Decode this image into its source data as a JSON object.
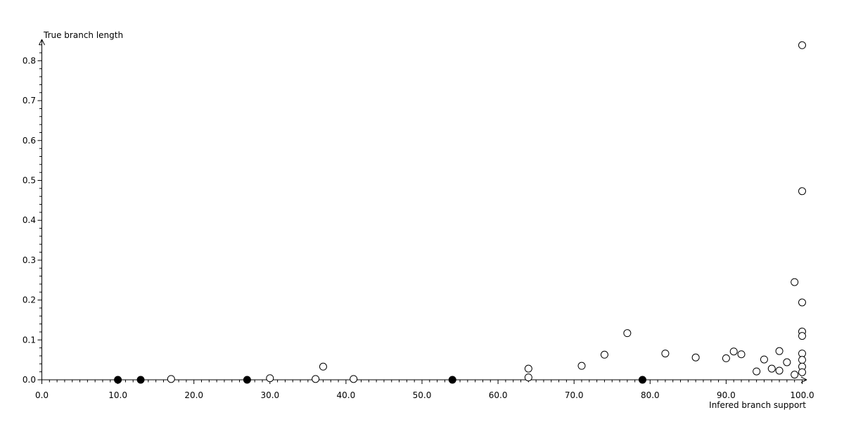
{
  "chart_data": {
    "type": "scatter",
    "title": "",
    "xlabel": "Infered branch support",
    "ylabel": "True branch length",
    "xlim": [
      0,
      100
    ],
    "ylim": [
      0,
      0.84
    ],
    "grid": false,
    "axis_color": "#000000",
    "background_color": "#ffffff",
    "x_ticks": [
      {
        "v": 0,
        "label": "0.0"
      },
      {
        "v": 10,
        "label": "10.0"
      },
      {
        "v": 20,
        "label": "20.0"
      },
      {
        "v": 30,
        "label": "30.0"
      },
      {
        "v": 40,
        "label": "40.0"
      },
      {
        "v": 50,
        "label": "50.0"
      },
      {
        "v": 60,
        "label": "60.0"
      },
      {
        "v": 70,
        "label": "70.0"
      },
      {
        "v": 80,
        "label": "80.0"
      },
      {
        "v": 90,
        "label": "90.0"
      },
      {
        "v": 100,
        "label": "100.0"
      }
    ],
    "x_minor_step": 1,
    "y_ticks": [
      {
        "v": 0.0,
        "label": "0.0"
      },
      {
        "v": 0.1,
        "label": "0.1"
      },
      {
        "v": 0.2,
        "label": "0.2"
      },
      {
        "v": 0.3,
        "label": "0.3"
      },
      {
        "v": 0.4,
        "label": "0.4"
      },
      {
        "v": 0.5,
        "label": "0.5"
      },
      {
        "v": 0.6,
        "label": "0.6"
      },
      {
        "v": 0.7,
        "label": "0.7"
      },
      {
        "v": 0.8,
        "label": "0.8"
      }
    ],
    "y_minor_step": 0.02,
    "series": [
      {
        "name": "filled-points",
        "marker": "filled-circle",
        "stroke": "#000000",
        "fill": "#000000",
        "points": [
          [
            10,
            0
          ],
          [
            13,
            0
          ],
          [
            27,
            0
          ],
          [
            54,
            0
          ],
          [
            79,
            0
          ]
        ]
      },
      {
        "name": "open-points",
        "marker": "open-circle",
        "stroke": "#000000",
        "fill": "#ffffff",
        "points": [
          [
            17,
            0.002
          ],
          [
            30,
            0.004
          ],
          [
            36,
            0.002
          ],
          [
            37,
            0.033
          ],
          [
            41,
            0.002
          ],
          [
            64,
            0.006
          ],
          [
            64,
            0.028
          ],
          [
            71,
            0.035
          ],
          [
            74,
            0.063
          ],
          [
            77,
            0.117
          ],
          [
            82,
            0.066
          ],
          [
            86,
            0.056
          ],
          [
            90,
            0.054
          ],
          [
            91,
            0.071
          ],
          [
            92,
            0.064
          ],
          [
            94,
            0.021
          ],
          [
            95,
            0.051
          ],
          [
            96,
            0.028
          ],
          [
            97,
            0.072
          ],
          [
            97,
            0.023
          ],
          [
            98,
            0.044
          ],
          [
            99,
            0.013
          ],
          [
            99,
            0.245
          ],
          [
            100,
            0.839
          ],
          [
            100,
            0.473
          ],
          [
            100,
            0.194
          ],
          [
            100,
            0.121
          ],
          [
            100,
            0.11
          ],
          [
            100,
            0.066
          ],
          [
            100,
            0.05
          ],
          [
            100,
            0.033
          ],
          [
            100,
            0.019
          ]
        ]
      }
    ]
  }
}
